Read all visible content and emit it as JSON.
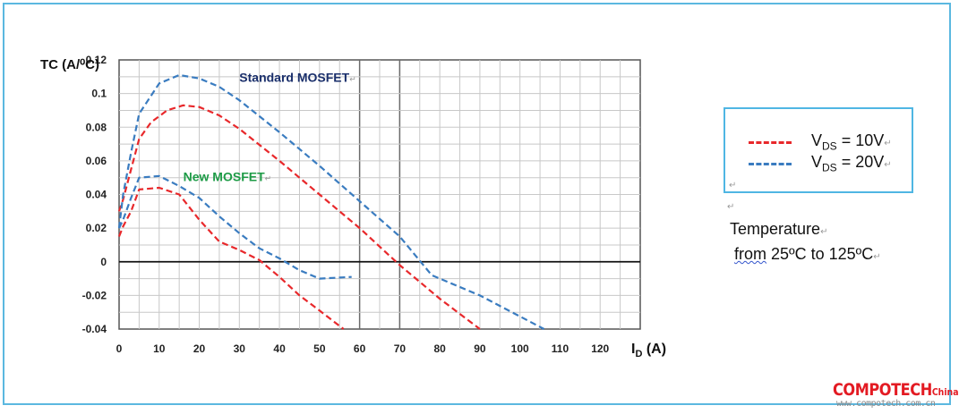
{
  "chart_data": {
    "type": "line",
    "ylabel": "TC (A/⁰C)",
    "xlabel": "I",
    "xlabel_sub": "D",
    "xlabel_unit": " (A)",
    "xlim": [
      0,
      130
    ],
    "ylim": [
      -0.04,
      0.12
    ],
    "x_ticks": [
      0,
      10,
      20,
      30,
      40,
      50,
      60,
      70,
      80,
      90,
      100,
      110,
      120
    ],
    "y_ticks": [
      -0.04,
      -0.02,
      0,
      0.02,
      0.04,
      0.06,
      0.08,
      0.1,
      0.12
    ],
    "x_tick_labels": [
      "0",
      "10",
      "20",
      "30",
      "40",
      "50",
      "60",
      "70",
      "80",
      "90",
      "100",
      "110",
      "120"
    ],
    "y_tick_labels": [
      "-0.04",
      "-0.02",
      "0",
      "0.02",
      "0.04",
      "0.06",
      "0.08",
      "0.1",
      "0.12"
    ],
    "grid": true,
    "series": [
      {
        "group": "Standard MOSFET",
        "condition": "VDS = 10V",
        "color": "#e8282b",
        "points": [
          [
            0,
            0.03
          ],
          [
            1,
            0.037
          ],
          [
            3,
            0.055
          ],
          [
            5,
            0.073
          ],
          [
            8,
            0.083
          ],
          [
            12,
            0.09
          ],
          [
            16,
            0.093
          ],
          [
            20,
            0.092
          ],
          [
            25,
            0.087
          ],
          [
            30,
            0.079
          ],
          [
            40,
            0.06
          ],
          [
            50,
            0.04
          ],
          [
            60,
            0.02
          ],
          [
            70,
            -0.002
          ],
          [
            80,
            -0.022
          ],
          [
            90,
            -0.04
          ]
        ]
      },
      {
        "group": "Standard MOSFET",
        "condition": "VDS = 20V",
        "color": "#3a7cc0",
        "points": [
          [
            0,
            0.02
          ],
          [
            1,
            0.04
          ],
          [
            3,
            0.065
          ],
          [
            5,
            0.088
          ],
          [
            10,
            0.106
          ],
          [
            15,
            0.111
          ],
          [
            20,
            0.109
          ],
          [
            25,
            0.104
          ],
          [
            30,
            0.096
          ],
          [
            40,
            0.077
          ],
          [
            50,
            0.057
          ],
          [
            60,
            0.036
          ],
          [
            70,
            0.015
          ],
          [
            78,
            -0.008
          ],
          [
            90,
            -0.02
          ],
          [
            106,
            -0.04
          ]
        ]
      },
      {
        "group": "New MOSFET",
        "condition": "VDS = 10V",
        "color": "#e8282b",
        "points": [
          [
            0,
            0.015
          ],
          [
            1,
            0.021
          ],
          [
            3,
            0.03
          ],
          [
            5,
            0.043
          ],
          [
            10,
            0.044
          ],
          [
            15,
            0.04
          ],
          [
            20,
            0.025
          ],
          [
            25,
            0.012
          ],
          [
            30,
            0.007
          ],
          [
            35,
            0.001
          ],
          [
            40,
            -0.009
          ],
          [
            45,
            -0.02
          ],
          [
            50,
            -0.029
          ],
          [
            56,
            -0.04
          ]
        ]
      },
      {
        "group": "New MOSFET",
        "condition": "VDS = 20V",
        "color": "#3a7cc0",
        "points": [
          [
            0,
            0.02
          ],
          [
            1,
            0.025
          ],
          [
            3,
            0.038
          ],
          [
            5,
            0.05
          ],
          [
            10,
            0.051
          ],
          [
            15,
            0.045
          ],
          [
            20,
            0.038
          ],
          [
            25,
            0.027
          ],
          [
            30,
            0.017
          ],
          [
            35,
            0.008
          ],
          [
            40,
            0.002
          ],
          [
            45,
            -0.005
          ],
          [
            50,
            -0.01
          ],
          [
            58,
            -0.009
          ]
        ]
      }
    ],
    "annotations": [
      {
        "text": "Standard MOSFET",
        "x": 30,
        "y": 0.107,
        "color": "#1a2f6b"
      },
      {
        "text": "New MOSFET",
        "x": 16,
        "y": 0.048,
        "color": "#1d9b46"
      }
    ]
  },
  "legend": {
    "items": [
      {
        "prefix": "V",
        "sub": "DS",
        "suffix": " = 10V",
        "color": "#e8282b"
      },
      {
        "prefix": "V",
        "sub": "DS",
        "suffix": " = 20V",
        "color": "#3a7cc0"
      }
    ]
  },
  "note": {
    "line1": "Temperature",
    "line2_word": "from",
    "line2_rest": " 25ºC to 125ºC"
  },
  "brand": {
    "name": "COMPOTECH",
    "suffix": "China",
    "url": "www.compotech.com.cn",
    "color": "#e31b23"
  },
  "marks": {
    "return": "↵"
  }
}
